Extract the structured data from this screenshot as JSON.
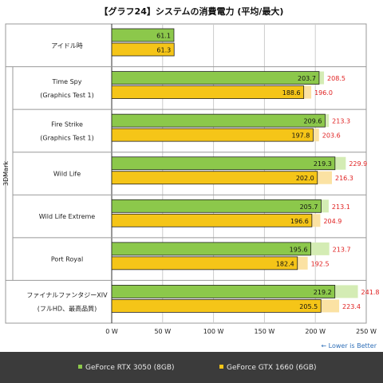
{
  "title": "【グラフ24】システムの消費電力 (平均/最大)",
  "note": "← Lower is Better",
  "colors": {
    "rtx_avg": "#8cc84b",
    "rtx_max": "#d4ecb4",
    "gtx_avg": "#f5c518",
    "gtx_max": "#fbe2a3",
    "max_label": "#e02020",
    "grid": "#cccccc"
  },
  "chart_data": {
    "type": "bar",
    "orientation": "horizontal",
    "group_label": "3DMark",
    "xlim": [
      0,
      250
    ],
    "xticks": [
      "0 W",
      "50 W",
      "100 W",
      "150 W",
      "200 W",
      "250 W"
    ],
    "grid": true,
    "legend_position": "bottom",
    "categories": [
      [
        "アイドル時"
      ],
      [
        "Time Spy",
        "(Graphics Test 1)"
      ],
      [
        "Fire Strike",
        "(Graphics Test 1)"
      ],
      [
        "Wild Life"
      ],
      [
        "Wild Life Extreme"
      ],
      [
        "Port Royal"
      ],
      [
        "ファイナルファンタジーXIV",
        "(フルHD、最高品質)"
      ]
    ],
    "series": [
      {
        "name": "GeForce RTX 3050 (8GB)",
        "average": [
          61.1,
          203.7,
          209.6,
          219.3,
          205.7,
          195.6,
          219.2
        ],
        "maximum": [
          null,
          208.5,
          213.3,
          229.9,
          213.1,
          213.7,
          241.8
        ]
      },
      {
        "name": "GeForce GTX 1660 (6GB)",
        "average": [
          61.3,
          188.6,
          197.8,
          202.0,
          196.6,
          182.4,
          205.5
        ],
        "maximum": [
          null,
          196.0,
          203.6,
          216.3,
          204.9,
          192.5,
          223.4
        ]
      }
    ]
  }
}
